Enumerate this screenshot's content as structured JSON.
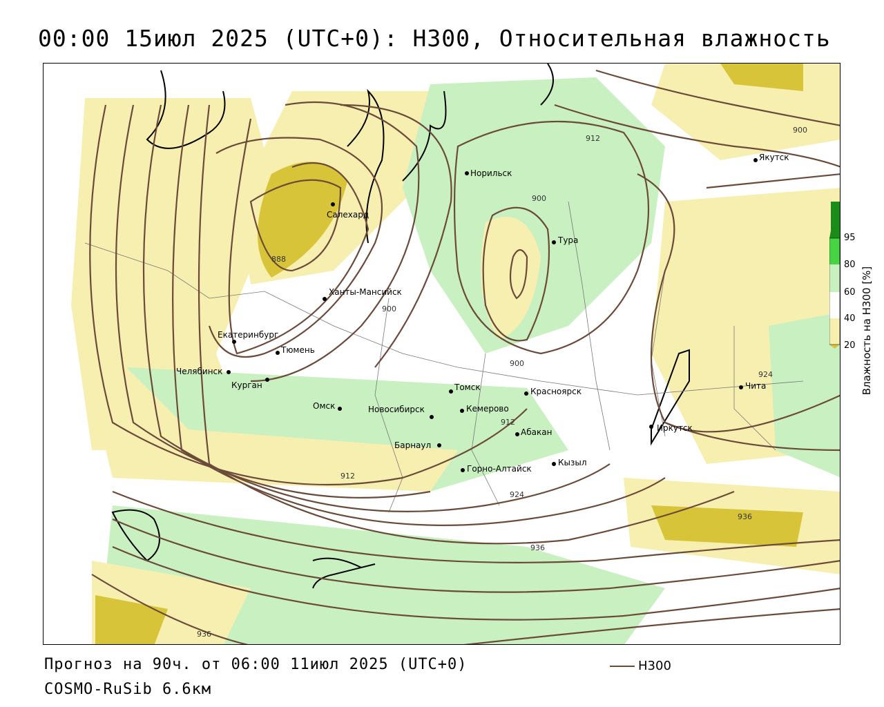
{
  "header": {
    "title": "00:00 15июл 2025 (UTC+0): H300, Относительная влажность"
  },
  "footer": {
    "forecast": "Прогноз на 90ч. от 06:00 11июл 2025 (UTC+0)",
    "model": "COSMO-RuSib 6.6км"
  },
  "legend": {
    "line_label": "H300",
    "line_color": "#6b4a3a"
  },
  "colorbar": {
    "title": "Влажность на H300 [%]",
    "ticks": [
      "95",
      "80",
      "60",
      "40",
      "20"
    ],
    "colors": {
      "gt95": "#1a8c1a",
      "80_95": "#44d444",
      "60_80": "#c8f0c0",
      "40_60": "#ffffff",
      "20_40": "#f7efb0",
      "lt20": "#d8c438"
    }
  },
  "cities": [
    {
      "name": "Норильск"
    },
    {
      "name": "Якутск"
    },
    {
      "name": "Салехард"
    },
    {
      "name": "Тура"
    },
    {
      "name": "Ханты-Мансийск"
    },
    {
      "name": "Екатеринбург"
    },
    {
      "name": "Тюмень"
    },
    {
      "name": "Челябинск"
    },
    {
      "name": "Курган"
    },
    {
      "name": "Омск"
    },
    {
      "name": "Новосибирск"
    },
    {
      "name": "Томск"
    },
    {
      "name": "Кемерово"
    },
    {
      "name": "Красноярск"
    },
    {
      "name": "Барнаул"
    },
    {
      "name": "Абакан"
    },
    {
      "name": "Горно-Алтайск"
    },
    {
      "name": "Кызыл"
    },
    {
      "name": "Иркутск"
    },
    {
      "name": "Чита"
    }
  ],
  "contour_labels": [
    "912",
    "900",
    "900",
    "888",
    "900",
    "900",
    "912",
    "912",
    "924",
    "924",
    "936",
    "936",
    "936"
  ]
}
